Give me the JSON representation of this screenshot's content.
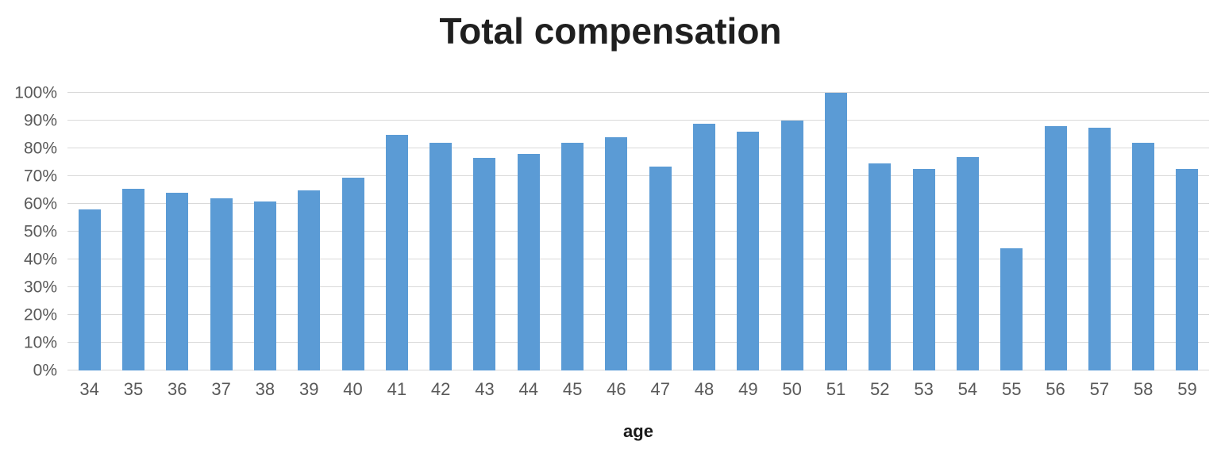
{
  "chart_data": {
    "type": "bar",
    "title": "Total compensation",
    "xlabel": "age",
    "ylabel": "",
    "categories": [
      34,
      35,
      36,
      37,
      38,
      39,
      40,
      41,
      42,
      43,
      44,
      45,
      46,
      47,
      48,
      49,
      50,
      51,
      52,
      53,
      54,
      55,
      56,
      57,
      58,
      59
    ],
    "values": [
      58,
      65.5,
      64,
      62,
      61,
      65,
      69.5,
      85,
      82,
      76.5,
      78,
      82,
      84,
      73.5,
      89,
      86,
      90,
      100,
      74.5,
      72.5,
      77,
      44,
      88,
      87.5,
      82,
      72.5
    ],
    "value_unit": "%",
    "ylim": [
      0,
      100
    ],
    "ytick_step": 10,
    "ytick_labels": [
      "0%",
      "10%",
      "20%",
      "30%",
      "40%",
      "50%",
      "60%",
      "70%",
      "80%",
      "90%",
      "100%"
    ],
    "grid": "horizontal",
    "legend": "none",
    "colors": {
      "bar": "#5B9BD5",
      "gridline": "#D9D9D9",
      "tick_label": "#595959",
      "title": "#1F1F1F",
      "axis_title": "#1A1A1A"
    }
  }
}
